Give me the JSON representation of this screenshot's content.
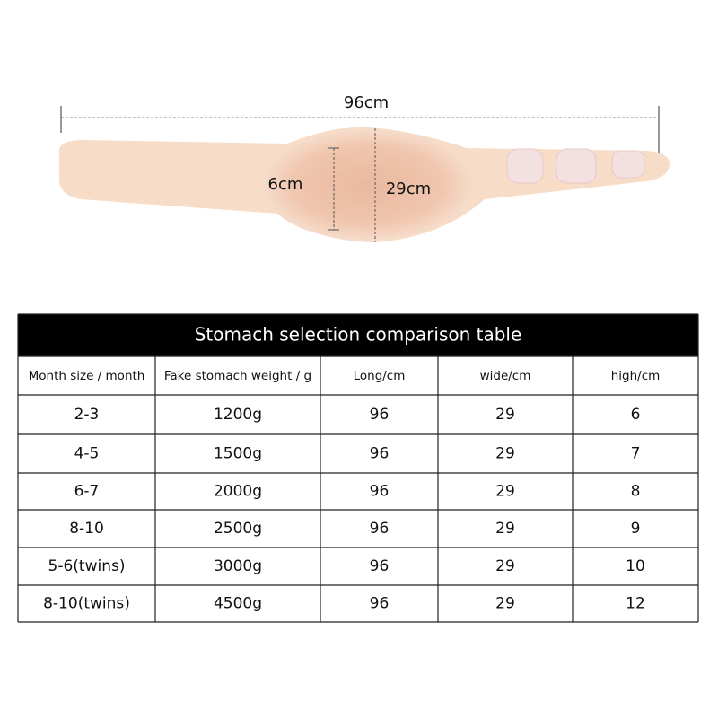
{
  "diagram": {
    "length_label": "96cm",
    "height_label": "6cm",
    "width_label": "29cm"
  },
  "table": {
    "title": "Stomach selection comparison table",
    "header": [
      "Month size / month",
      "Fake stomach weight / g",
      "Long/cm",
      "wide/cm",
      "high/cm"
    ],
    "rows": [
      [
        "2-3",
        "1200g",
        96,
        29,
        6
      ],
      [
        "4-5",
        "1500g",
        96,
        29,
        7
      ],
      [
        "6-7",
        "2000g",
        96,
        29,
        8
      ],
      [
        "8-10",
        "2500g",
        96,
        29,
        9
      ],
      [
        "5-6(twins)",
        "3000g",
        96,
        29,
        10
      ],
      [
        "8-10(twins)",
        "4500g",
        96,
        29,
        12
      ]
    ]
  }
}
